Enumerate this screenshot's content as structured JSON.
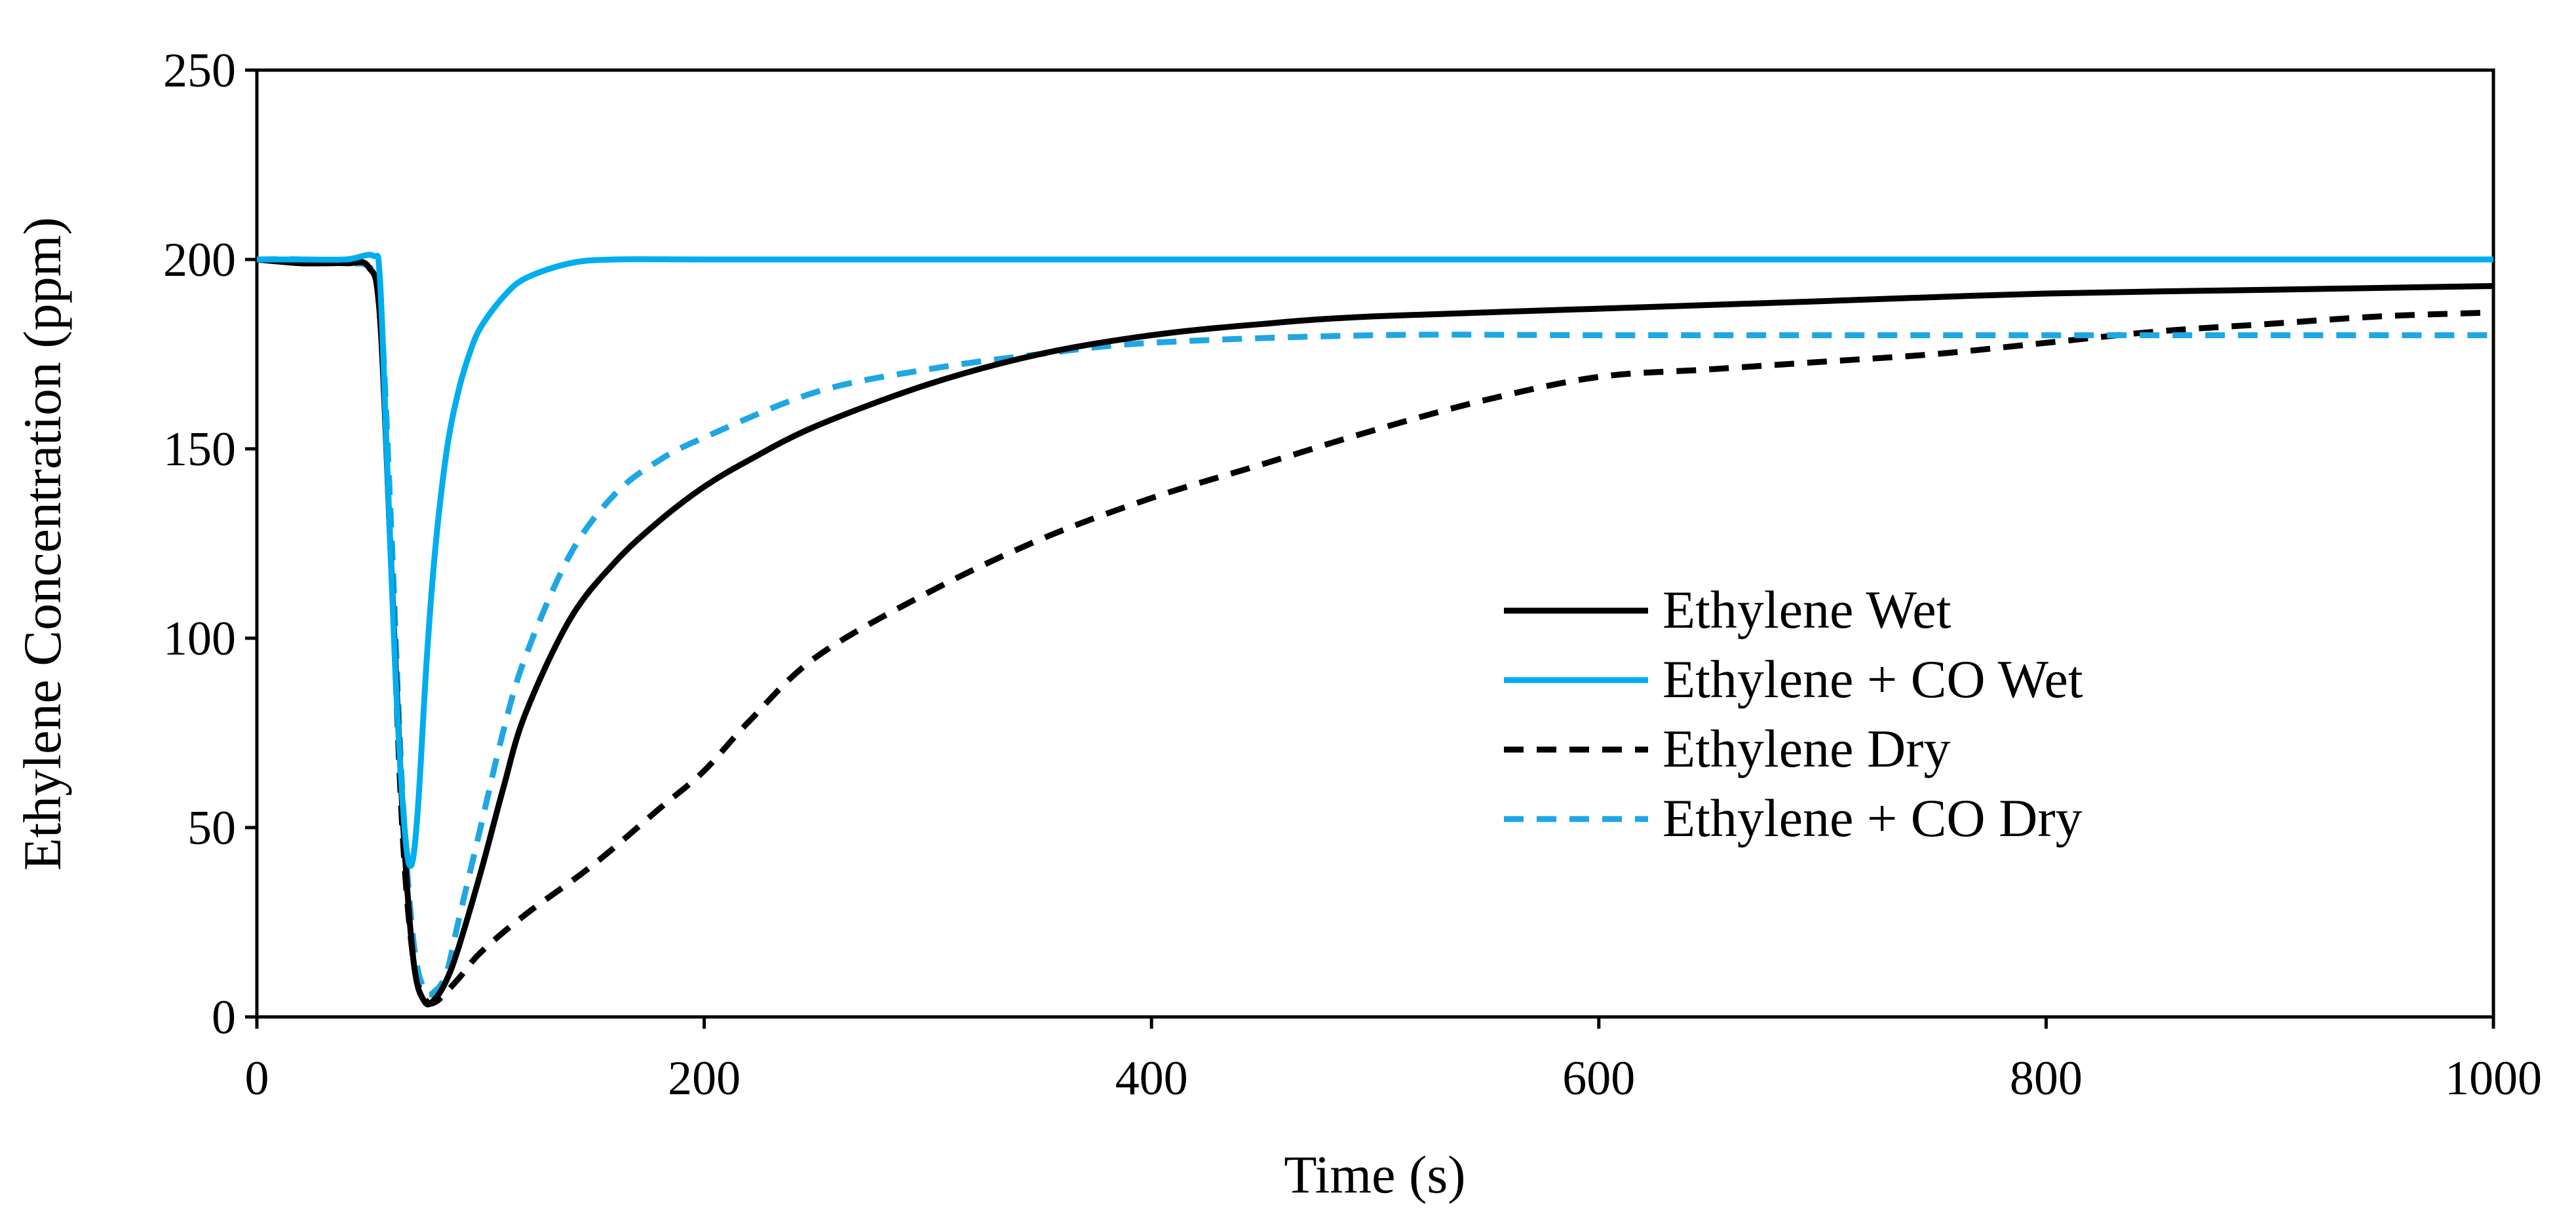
{
  "chart_data": {
    "type": "line",
    "title": "",
    "xlabel": "Time (s)",
    "ylabel": "Ethylene Concentration (ppm)",
    "xlim": [
      0,
      1000
    ],
    "ylim": [
      0,
      250
    ],
    "x_ticks": [
      0,
      200,
      400,
      600,
      800,
      1000
    ],
    "y_ticks": [
      0,
      50,
      100,
      150,
      200,
      250
    ],
    "x_tick_labels": [
      "0",
      "200",
      "400",
      "600",
      "800",
      "1000"
    ],
    "y_tick_labels": [
      "0",
      "50",
      "100",
      "150",
      "200",
      "250"
    ],
    "grid": false,
    "legend_position": "center-right",
    "series": [
      {
        "name": "Ethylene Wet",
        "color": "#000000",
        "dash": "solid",
        "x": [
          0,
          20,
          40,
          50,
          55,
          60,
          65,
          70,
          75,
          80,
          85,
          90,
          100,
          110,
          120,
          140,
          160,
          180,
          200,
          220,
          250,
          300,
          350,
          400,
          450,
          500,
          600,
          700,
          800,
          900,
          1000
        ],
        "y": [
          200,
          199,
          199,
          198,
          185,
          120,
          55,
          15,
          4,
          5,
          10,
          18,
          38,
          60,
          80,
          105,
          120,
          131,
          140,
          147,
          156,
          167,
          175,
          180,
          183,
          185,
          187,
          189,
          191,
          192,
          193
        ]
      },
      {
        "name": "Ethylene + CO Wet",
        "color": "#00adee",
        "dash": "solid",
        "x": [
          0,
          20,
          40,
          52,
          55,
          58,
          62,
          66,
          69,
          72,
          76,
          80,
          85,
          90,
          95,
          100,
          110,
          120,
          140,
          160,
          200,
          300,
          400,
          500,
          600,
          700,
          800,
          900,
          1000
        ],
        "y": [
          200,
          200,
          200,
          201,
          195,
          150,
          90,
          50,
          40,
          55,
          95,
          125,
          150,
          165,
          175,
          182,
          190,
          195,
          199,
          200,
          200,
          200,
          200,
          200,
          200,
          200,
          200,
          200,
          200
        ]
      },
      {
        "name": "Ethylene Dry",
        "color": "#000000",
        "dash": "dashed",
        "x": [
          0,
          20,
          40,
          50,
          55,
          60,
          65,
          70,
          75,
          80,
          90,
          100,
          120,
          150,
          180,
          200,
          220,
          250,
          300,
          350,
          400,
          450,
          500,
          550,
          600,
          650,
          700,
          750,
          800,
          850,
          900,
          950,
          1000
        ],
        "y": [
          200,
          199,
          199,
          198,
          185,
          120,
          50,
          15,
          5,
          4,
          10,
          17,
          27,
          40,
          55,
          65,
          78,
          95,
          112,
          126,
          137,
          146,
          155,
          163,
          169,
          171,
          173,
          175,
          178,
          181,
          183,
          185,
          186
        ]
      },
      {
        "name": "Ethylene + CO Dry",
        "color": "#1fa6e4",
        "dash": "dashed",
        "x": [
          0,
          20,
          40,
          50,
          55,
          60,
          65,
          70,
          75,
          80,
          85,
          90,
          100,
          110,
          120,
          140,
          160,
          180,
          200,
          250,
          300,
          350,
          400,
          500,
          600,
          700,
          800,
          900,
          1000
        ],
        "y": [
          200,
          200,
          199,
          198,
          190,
          130,
          60,
          20,
          7,
          7,
          12,
          25,
          50,
          75,
          95,
          122,
          138,
          147,
          153,
          165,
          171,
          175,
          178,
          180,
          180,
          180,
          180,
          180,
          180
        ]
      }
    ]
  }
}
